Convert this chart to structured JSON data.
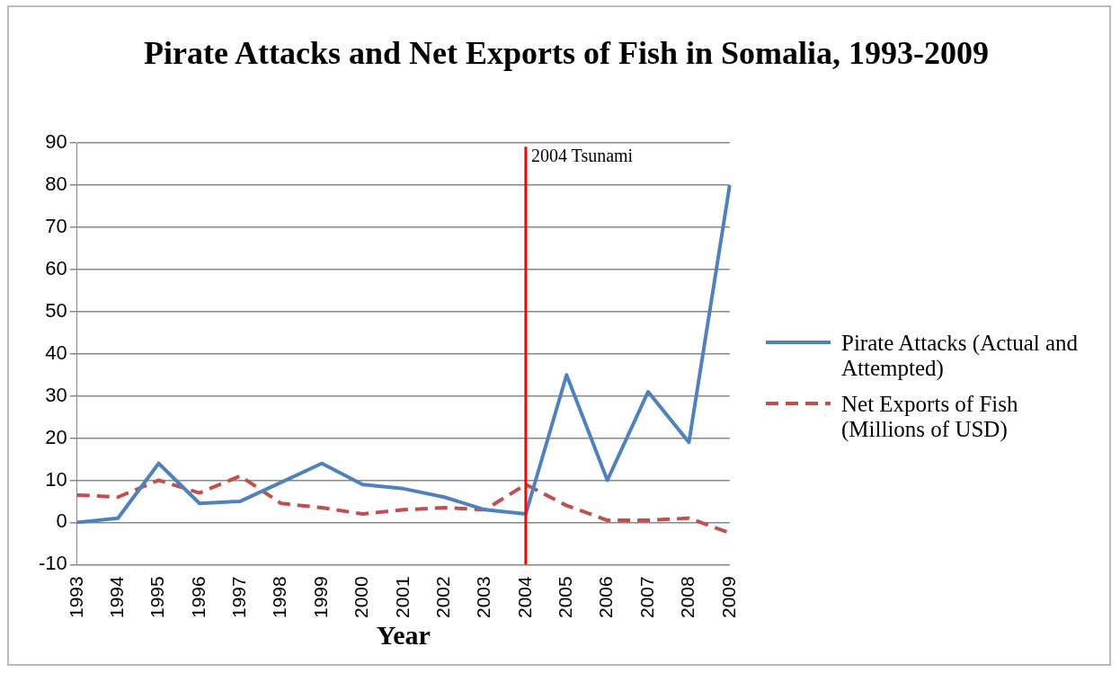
{
  "chart_data": {
    "type": "line",
    "title": "Pirate Attacks and Net Exports  of Fish in Somalia, 1993-2009",
    "xlabel": "Year",
    "categories": [
      "1993",
      "1994",
      "1995",
      "1996",
      "1997",
      "1998",
      "1999",
      "2000",
      "2001",
      "2002",
      "2003",
      "2004",
      "2005",
      "2006",
      "2007",
      "2008",
      "2009"
    ],
    "series": [
      {
        "name": "Pirate Attacks (Actual and Attempted)",
        "color": "#4f81bd",
        "line_style": "solid",
        "values": [
          0,
          1,
          14,
          4.5,
          5,
          9.5,
          14,
          9,
          8,
          6,
          3,
          2,
          35,
          10,
          31,
          19,
          80
        ]
      },
      {
        "name": "Net Exports of Fish (Millions of USD)",
        "color": "#c0504d",
        "line_style": "dashed",
        "values": [
          6.5,
          6,
          10,
          7,
          11,
          4.5,
          3.5,
          2,
          3,
          3.5,
          3,
          9,
          4,
          0.5,
          0.5,
          1,
          -2.5
        ]
      }
    ],
    "ylim": [
      -10,
      90
    ],
    "yticks": [
      -10,
      0,
      10,
      20,
      30,
      40,
      50,
      60,
      70,
      80,
      90
    ],
    "grid": "y",
    "legend": "right",
    "marker": "none",
    "ref_lines": [
      {
        "axis": "x",
        "value": "2004",
        "label": "2004 Tsunami",
        "color": "#ff0000"
      }
    ]
  }
}
